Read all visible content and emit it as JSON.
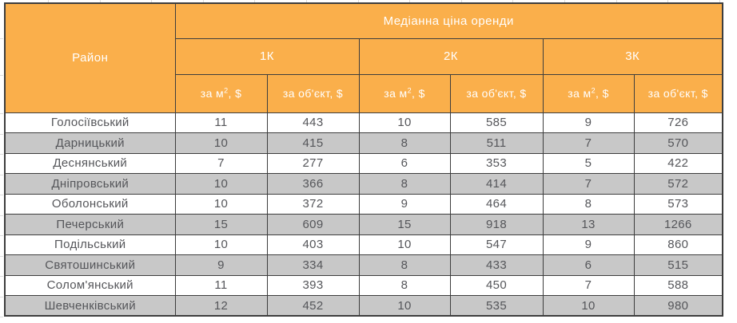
{
  "chart_data": {
    "type": "table",
    "title": "Медіанна ціна оренди",
    "corner_header": "Район",
    "groups": [
      "1К",
      "2К",
      "3К"
    ],
    "sub_headers": {
      "per_m2": "за м², $",
      "per_object": "за об'єкт, $"
    },
    "rows": [
      {
        "district": "Голосіївський",
        "values": [
          "11",
          "443",
          "10",
          "585",
          "9",
          "726"
        ]
      },
      {
        "district": "Дарницький",
        "values": [
          "10",
          "415",
          "8",
          "511",
          "7",
          "570"
        ]
      },
      {
        "district": "Деснянський",
        "values": [
          "7",
          "277",
          "6",
          "353",
          "5",
          "422"
        ]
      },
      {
        "district": "Дніпровський",
        "values": [
          "10",
          "366",
          "8",
          "414",
          "7",
          "572"
        ]
      },
      {
        "district": "Оболонський",
        "values": [
          "10",
          "372",
          "9",
          "464",
          "8",
          "573"
        ]
      },
      {
        "district": "Печерський",
        "values": [
          "15",
          "609",
          "15",
          "918",
          "13",
          "1266"
        ]
      },
      {
        "district": "Подільський",
        "values": [
          "10",
          "403",
          "10",
          "547",
          "9",
          "860"
        ]
      },
      {
        "district": "Святошинський",
        "values": [
          "9",
          "334",
          "8",
          "433",
          "6",
          "515"
        ]
      },
      {
        "district": "Солом'янський",
        "values": [
          "11",
          "393",
          "8",
          "450",
          "7",
          "588"
        ]
      },
      {
        "district": "Шевченківський",
        "values": [
          "12",
          "452",
          "10",
          "535",
          "10",
          "980"
        ]
      }
    ]
  },
  "colors": {
    "header_bg": "#FAAF4B",
    "header_text": "#FFFFFF",
    "row_bg": "#FFFFFF",
    "row_alt_bg": "#C8C8C8",
    "cell_text": "#55565A",
    "border": "#3D3D3D"
  }
}
